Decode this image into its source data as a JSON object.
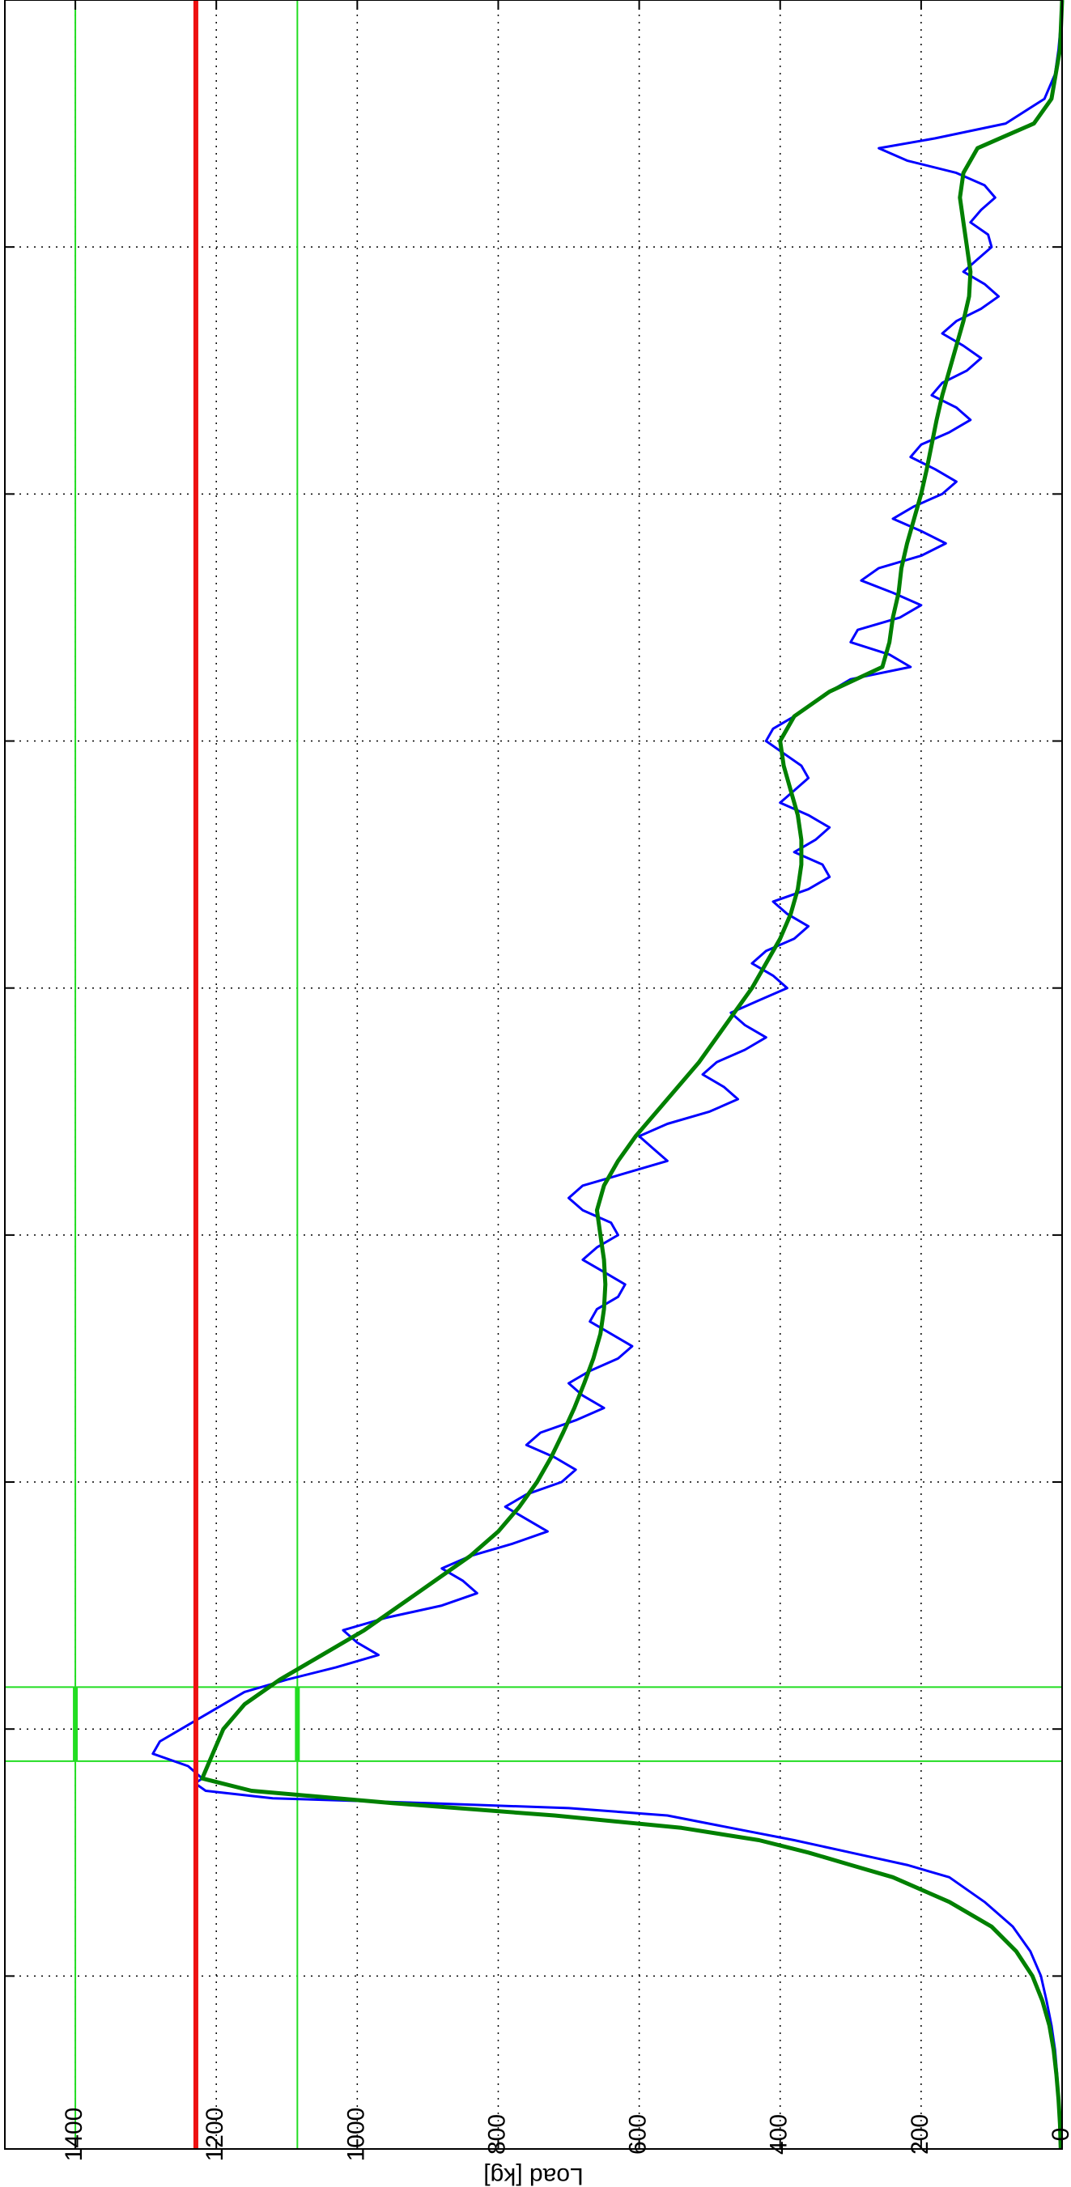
{
  "chart_data": {
    "type": "line",
    "orientation": "rotated 90 degrees clockwise (x axis runs down the page, load axis runs right to left)",
    "ylabel": "Load [kg]",
    "xlabel": "",
    "xlim": [
      0,
      87
    ],
    "ylim": [
      0,
      1500
    ],
    "x_ticks": [
      0,
      10,
      20,
      30,
      40,
      50,
      60,
      70,
      80
    ],
    "y_ticks": [
      0,
      200,
      400,
      600,
      800,
      1000,
      1200,
      1400
    ],
    "grid": true,
    "series": [
      {
        "color": "#0000ff",
        "points": [
          [
            0,
            0
          ],
          [
            1,
            2
          ],
          [
            2,
            5
          ],
          [
            3,
            10
          ],
          [
            4,
            25
          ],
          [
            5,
            80
          ],
          [
            5.6,
            180
          ],
          [
            6,
            260
          ],
          [
            6.5,
            220
          ],
          [
            7,
            150
          ],
          [
            7.5,
            110
          ],
          [
            8,
            95
          ],
          [
            8.5,
            115
          ],
          [
            9,
            130
          ],
          [
            9.5,
            105
          ],
          [
            10,
            100
          ],
          [
            10.5,
            120
          ],
          [
            11,
            140
          ],
          [
            11.5,
            110
          ],
          [
            12,
            90
          ],
          [
            12.5,
            115
          ],
          [
            13,
            150
          ],
          [
            13.5,
            170
          ],
          [
            14,
            140
          ],
          [
            14.5,
            115
          ],
          [
            15,
            135
          ],
          [
            15.5,
            170
          ],
          [
            16,
            185
          ],
          [
            16.5,
            150
          ],
          [
            17,
            130
          ],
          [
            17.5,
            160
          ],
          [
            18,
            200
          ],
          [
            18.5,
            215
          ],
          [
            19,
            180
          ],
          [
            19.5,
            150
          ],
          [
            20,
            170
          ],
          [
            20.5,
            210
          ],
          [
            21,
            240
          ],
          [
            21.5,
            200
          ],
          [
            22,
            165
          ],
          [
            22.5,
            200
          ],
          [
            23,
            260
          ],
          [
            23.5,
            285
          ],
          [
            24,
            240
          ],
          [
            24.5,
            200
          ],
          [
            25,
            230
          ],
          [
            25.5,
            290
          ],
          [
            26,
            300
          ],
          [
            26.5,
            245
          ],
          [
            27,
            215
          ],
          [
            27.5,
            300
          ],
          [
            28,
            330
          ],
          [
            28.5,
            355
          ],
          [
            29,
            380
          ],
          [
            29.5,
            410
          ],
          [
            30,
            420
          ],
          [
            30.5,
            395
          ],
          [
            31,
            370
          ],
          [
            31.5,
            360
          ],
          [
            32,
            380
          ],
          [
            32.5,
            400
          ],
          [
            33,
            360
          ],
          [
            33.5,
            330
          ],
          [
            34,
            350
          ],
          [
            34.5,
            380
          ],
          [
            35,
            340
          ],
          [
            35.5,
            330
          ],
          [
            36,
            360
          ],
          [
            36.5,
            410
          ],
          [
            37,
            390
          ],
          [
            37.5,
            360
          ],
          [
            38,
            380
          ],
          [
            38.5,
            420
          ],
          [
            39,
            440
          ],
          [
            39.5,
            410
          ],
          [
            40,
            390
          ],
          [
            40.5,
            430
          ],
          [
            41,
            470
          ],
          [
            41.5,
            450
          ],
          [
            42,
            420
          ],
          [
            42.5,
            450
          ],
          [
            43,
            490
          ],
          [
            43.5,
            510
          ],
          [
            44,
            480
          ],
          [
            44.5,
            460
          ],
          [
            45,
            500
          ],
          [
            45.5,
            560
          ],
          [
            46,
            600
          ],
          [
            46.5,
            580
          ],
          [
            47,
            560
          ],
          [
            47.5,
            620
          ],
          [
            48,
            680
          ],
          [
            48.5,
            700
          ],
          [
            49,
            680
          ],
          [
            49.5,
            640
          ],
          [
            50,
            630
          ],
          [
            50.5,
            660
          ],
          [
            51,
            680
          ],
          [
            51.5,
            650
          ],
          [
            52,
            620
          ],
          [
            52.5,
            630
          ],
          [
            53,
            660
          ],
          [
            53.5,
            670
          ],
          [
            54,
            640
          ],
          [
            54.5,
            610
          ],
          [
            55,
            630
          ],
          [
            55.5,
            670
          ],
          [
            56,
            700
          ],
          [
            56.5,
            680
          ],
          [
            57,
            650
          ],
          [
            57.5,
            690
          ],
          [
            58,
            740
          ],
          [
            58.5,
            760
          ],
          [
            59,
            720
          ],
          [
            59.5,
            690
          ],
          [
            60,
            710
          ],
          [
            60.5,
            760
          ],
          [
            61,
            790
          ],
          [
            61.5,
            760
          ],
          [
            62,
            730
          ],
          [
            62.5,
            780
          ],
          [
            63,
            840
          ],
          [
            63.5,
            880
          ],
          [
            64,
            850
          ],
          [
            64.5,
            830
          ],
          [
            65,
            880
          ],
          [
            65.5,
            960
          ],
          [
            66,
            1020
          ],
          [
            66.5,
            1000
          ],
          [
            67,
            970
          ],
          [
            67.5,
            1030
          ],
          [
            68,
            1100
          ],
          [
            68.5,
            1160
          ],
          [
            69,
            1190
          ],
          [
            69.5,
            1220
          ],
          [
            70,
            1250
          ],
          [
            70.5,
            1280
          ],
          [
            71,
            1290
          ],
          [
            71.5,
            1240
          ],
          [
            72,
            1220
          ],
          [
            72.2,
            1230
          ],
          [
            72.5,
            1215
          ],
          [
            72.8,
            1120
          ],
          [
            73,
            900
          ],
          [
            73.2,
            700
          ],
          [
            73.5,
            560
          ],
          [
            74,
            470
          ],
          [
            74.5,
            380
          ],
          [
            75,
            300
          ],
          [
            75.5,
            220
          ],
          [
            76,
            160
          ],
          [
            77,
            110
          ],
          [
            78,
            70
          ],
          [
            79,
            45
          ],
          [
            80,
            30
          ],
          [
            81,
            22
          ],
          [
            82,
            15
          ],
          [
            83,
            10
          ],
          [
            84,
            7
          ],
          [
            85,
            5
          ],
          [
            86,
            3
          ],
          [
            87,
            2
          ]
        ]
      },
      {
        "color": "#008000",
        "points": [
          [
            0,
            0
          ],
          [
            2,
            3
          ],
          [
            4,
            15
          ],
          [
            5,
            40
          ],
          [
            5.5,
            80
          ],
          [
            6,
            120
          ],
          [
            7,
            140
          ],
          [
            8,
            145
          ],
          [
            9,
            140
          ],
          [
            10,
            135
          ],
          [
            11,
            130
          ],
          [
            12,
            132
          ],
          [
            13,
            140
          ],
          [
            14,
            150
          ],
          [
            15,
            160
          ],
          [
            16,
            170
          ],
          [
            17,
            178
          ],
          [
            18,
            185
          ],
          [
            19,
            192
          ],
          [
            20,
            200
          ],
          [
            21,
            210
          ],
          [
            22,
            220
          ],
          [
            23,
            228
          ],
          [
            24,
            232
          ],
          [
            25,
            240
          ],
          [
            26,
            245
          ],
          [
            27,
            255
          ],
          [
            28,
            330
          ],
          [
            29,
            380
          ],
          [
            30,
            400
          ],
          [
            31,
            395
          ],
          [
            32,
            385
          ],
          [
            33,
            375
          ],
          [
            34,
            370
          ],
          [
            35,
            370
          ],
          [
            36,
            375
          ],
          [
            37,
            385
          ],
          [
            38,
            400
          ],
          [
            39,
            420
          ],
          [
            40,
            440
          ],
          [
            41,
            465
          ],
          [
            42,
            490
          ],
          [
            43,
            515
          ],
          [
            44,
            545
          ],
          [
            45,
            575
          ],
          [
            46,
            605
          ],
          [
            47,
            630
          ],
          [
            48,
            650
          ],
          [
            49,
            660
          ],
          [
            50,
            655
          ],
          [
            51,
            650
          ],
          [
            52,
            648
          ],
          [
            53,
            650
          ],
          [
            54,
            655
          ],
          [
            55,
            665
          ],
          [
            56,
            678
          ],
          [
            57,
            692
          ],
          [
            58,
            708
          ],
          [
            59,
            725
          ],
          [
            60,
            745
          ],
          [
            61,
            770
          ],
          [
            62,
            800
          ],
          [
            63,
            840
          ],
          [
            64,
            890
          ],
          [
            65,
            940
          ],
          [
            66,
            990
          ],
          [
            67,
            1050
          ],
          [
            68,
            1110
          ],
          [
            69,
            1160
          ],
          [
            70,
            1190
          ],
          [
            71,
            1205
          ],
          [
            72,
            1220
          ],
          [
            72.5,
            1150
          ],
          [
            73,
            950
          ],
          [
            73.5,
            720
          ],
          [
            74,
            540
          ],
          [
            74.5,
            430
          ],
          [
            75,
            360
          ],
          [
            75.5,
            300
          ],
          [
            76,
            240
          ],
          [
            77,
            160
          ],
          [
            78,
            100
          ],
          [
            79,
            65
          ],
          [
            80,
            42
          ],
          [
            81,
            28
          ],
          [
            82,
            18
          ],
          [
            83,
            12
          ],
          [
            84,
            8
          ],
          [
            85,
            5
          ],
          [
            86,
            3
          ],
          [
            87,
            2
          ]
        ]
      }
    ],
    "reference_lines": [
      {
        "orientation": "horizontal",
        "value": 1229,
        "color": "#ee1111",
        "thick": true
      },
      {
        "orientation": "horizontal",
        "value": 1400,
        "color": "#22dd22",
        "thick": false
      },
      {
        "orientation": "horizontal",
        "value": 1085,
        "color": "#22dd22",
        "thick": false
      },
      {
        "orientation": "vertical",
        "value": 68.3,
        "color": "#22dd22",
        "thick": false
      },
      {
        "orientation": "vertical",
        "value": 71.3,
        "color": "#22dd22",
        "thick": false
      }
    ]
  }
}
